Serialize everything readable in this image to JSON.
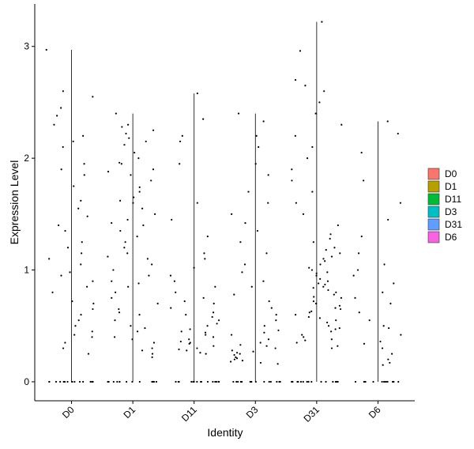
{
  "chart_data": {
    "type": "jitter-violin",
    "x_label": "Identity",
    "y_label": "Expression Level",
    "categories": [
      "D0",
      "D1",
      "D11",
      "D3",
      "D31",
      "D6"
    ],
    "ylim": [
      -0.17,
      3.38
    ],
    "yticks": [
      0,
      1,
      2,
      3
    ],
    "series": [
      {
        "name": "D0",
        "color": "#F8766D",
        "values": [
          2.97,
          2.55,
          2.45,
          2.38,
          2.2,
          2.15,
          2.1,
          1.95,
          1.85,
          1.75,
          1.62,
          1.55,
          1.48,
          1.4,
          1.35,
          1.25,
          1.15,
          1.1,
          1.05,
          0.98,
          0.9,
          0.85,
          0.8,
          0.72,
          0.65,
          0.6,
          0.55,
          0.5,
          0.45,
          0.4,
          0.35,
          0.3,
          0.25,
          2.6,
          2.3,
          1.9,
          1.2,
          0.95,
          0.7,
          0.42,
          0,
          0,
          0,
          0,
          0,
          0,
          0,
          0,
          0,
          0,
          0,
          0,
          0,
          0,
          0
        ]
      },
      {
        "name": "D1",
        "color": "#B79F00",
        "values": [
          2.4,
          2.3,
          2.28,
          2.22,
          2.18,
          2.12,
          2.05,
          2.0,
          1.96,
          1.9,
          1.85,
          1.8,
          1.74,
          1.7,
          1.65,
          1.6,
          1.55,
          1.5,
          1.45,
          1.4,
          1.35,
          1.3,
          1.25,
          1.2,
          1.15,
          1.1,
          1.05,
          1.0,
          0.95,
          0.9,
          0.85,
          0.8,
          0.75,
          0.7,
          0.65,
          0.6,
          0.55,
          0.5,
          0.45,
          0.4,
          0.35,
          0.3,
          0.25,
          0.22,
          2.25,
          2.15,
          1.95,
          1.88,
          1.62,
          1.42,
          1.12,
          0.88,
          0.62,
          0.48,
          0.38,
          0.28,
          0,
          0,
          0,
          0,
          0,
          0,
          0,
          0,
          0,
          0,
          0,
          0,
          0,
          0,
          0
        ]
      },
      {
        "name": "D11",
        "color": "#00BA38",
        "values": [
          2.58,
          2.35,
          2.2,
          2.15,
          1.95,
          1.6,
          1.45,
          1.3,
          1.15,
          1.1,
          1.02,
          0.95,
          0.9,
          0.85,
          0.8,
          0.75,
          0.7,
          0.66,
          0.62,
          0.58,
          0.55,
          0.52,
          0.5,
          0.47,
          0.45,
          0.42,
          0.4,
          0.38,
          0.36,
          0.34,
          0.32,
          0.3,
          0.28,
          0.26,
          0.25,
          0.6,
          0.44,
          0.35,
          0.29,
          0.72,
          0,
          0,
          0,
          0,
          0,
          0,
          0,
          0,
          0,
          0,
          0,
          0,
          0,
          0,
          0
        ]
      },
      {
        "name": "D3",
        "color": "#00BFC4",
        "values": [
          2.4,
          2.33,
          2.2,
          2.1,
          1.95,
          1.85,
          1.7,
          1.6,
          1.5,
          1.42,
          1.35,
          1.25,
          1.15,
          1.05,
          0.98,
          0.9,
          0.85,
          0.78,
          0.72,
          0.66,
          0.6,
          0.55,
          0.5,
          0.46,
          0.42,
          0.38,
          0.35,
          0.32,
          0.3,
          0.28,
          0.26,
          0.24,
          0.22,
          0.2,
          0.18,
          0.17,
          0.16,
          0.25,
          0.21,
          0.33,
          0.44,
          0.19,
          0.27,
          0,
          0,
          0,
          0,
          0,
          0,
          0,
          0,
          0,
          0,
          0,
          0,
          0,
          0,
          0
        ]
      },
      {
        "name": "D31",
        "color": "#619CFF",
        "values": [
          3.22,
          2.96,
          2.7,
          2.65,
          2.6,
          2.5,
          2.4,
          2.3,
          2.2,
          2.1,
          2.0,
          1.9,
          1.8,
          1.7,
          1.6,
          1.5,
          1.4,
          1.32,
          1.28,
          1.25,
          1.2,
          1.15,
          1.12,
          1.08,
          1.05,
          1.02,
          1.0,
          0.97,
          0.95,
          0.92,
          0.9,
          0.87,
          0.85,
          0.82,
          0.8,
          0.78,
          0.75,
          0.72,
          0.7,
          0.68,
          0.65,
          0.62,
          0.6,
          0.58,
          0.55,
          0.53,
          0.5,
          0.48,
          0.45,
          0.42,
          0.4,
          0.38,
          0.35,
          0.32,
          0.3,
          1.1,
          0.98,
          0.88,
          0.76,
          0.66,
          0.57,
          0.47,
          0.37,
          1.18,
          0.84,
          0.63,
          0,
          0,
          0,
          0,
          0,
          0,
          0,
          0,
          0,
          0,
          0,
          0,
          0,
          0,
          0
        ]
      },
      {
        "name": "D6",
        "color": "#F564E3",
        "values": [
          2.33,
          2.22,
          2.05,
          1.8,
          1.6,
          1.45,
          1.3,
          1.15,
          1.05,
          0.95,
          0.88,
          0.8,
          0.7,
          0.62,
          0.55,
          0.48,
          0.42,
          0.36,
          0.3,
          0.25,
          0.2,
          0.17,
          0.15,
          1.0,
          0.75,
          0.5,
          0.34,
          0,
          0,
          0,
          0,
          0,
          0,
          0,
          0,
          0,
          0,
          0,
          0,
          0,
          0
        ]
      }
    ]
  }
}
